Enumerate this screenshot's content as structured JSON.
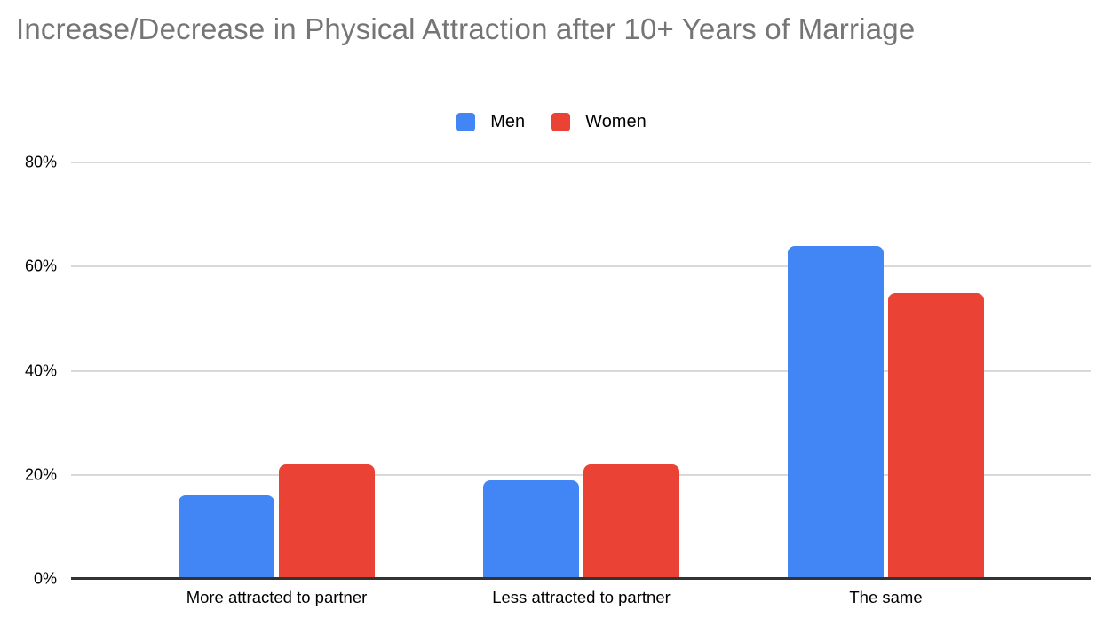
{
  "chart_data": {
    "type": "bar",
    "title": "Increase/Decrease in Physical Attraction after 10+ Years of Marriage",
    "categories": [
      "More attracted to partner",
      "Less attracted to partner",
      "The same"
    ],
    "series": [
      {
        "name": "Men",
        "color": "#4285F4",
        "values": [
          16,
          19,
          64
        ]
      },
      {
        "name": "Women",
        "color": "#EA4335",
        "values": [
          22,
          22,
          55
        ]
      }
    ],
    "xlabel": "",
    "ylabel": "",
    "y_ticks": [
      "0%",
      "20%",
      "40%",
      "60%",
      "80%"
    ],
    "y_tick_values": [
      0,
      20,
      40,
      60,
      80
    ],
    "ylim": [
      0,
      80
    ],
    "grid": true,
    "legend_position": "top"
  },
  "colors": {
    "background": "#ffffff",
    "title_text": "#757575",
    "axis_text": "#000000",
    "gridline": "#d9d9d9",
    "baseline": "#333333",
    "series_men": "#4285F4",
    "series_women": "#EA4335"
  }
}
